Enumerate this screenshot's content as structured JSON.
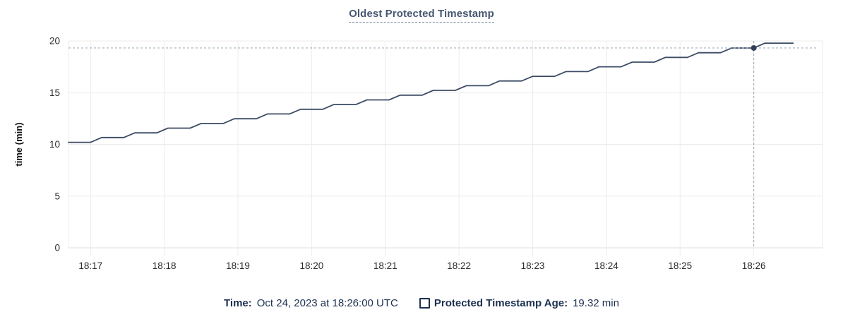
{
  "colors": {
    "line": "#3c4b66",
    "dot": "#30405a",
    "crosshair": "#a2b2c0",
    "grid": "#ececec",
    "axis_zero": "#dcdcdc",
    "title": "#475872",
    "tick_text": "#2b2b2b",
    "ylabel_text": "#111111",
    "legend_text": "#1c3150"
  },
  "footer": {
    "time_label": "Time:",
    "time_value": "Oct 24, 2023 at 18:26:00 UTC",
    "series_label": "Protected Timestamp Age:",
    "series_value": "19.32 min",
    "legend_marker": "checkbox-square-outline"
  },
  "chart_data": {
    "type": "line",
    "title": "Oldest Protected Timestamp",
    "xlabel": "",
    "ylabel": "time (min)",
    "ylim": [
      0,
      20
    ],
    "y_ticks": [
      0,
      5,
      10,
      15,
      20
    ],
    "x_ticks": [
      "18:17",
      "18:18",
      "18:19",
      "18:20",
      "18:21",
      "18:22",
      "18:23",
      "18:24",
      "18:25",
      "18:26"
    ],
    "x_domain": [
      "18:16:42",
      "18:26:56"
    ],
    "grid": true,
    "legend_position": "bottom-center",
    "series": [
      {
        "name": "Protected Timestamp Age",
        "unit": "min",
        "start_time": "18:16:42",
        "points": [
          [
            0,
            10.2
          ],
          [
            18,
            10.2
          ],
          [
            27,
            10.66
          ],
          [
            45,
            10.66
          ],
          [
            54,
            11.11
          ],
          [
            72,
            11.11
          ],
          [
            81,
            11.57
          ],
          [
            99,
            11.57
          ],
          [
            108,
            12.02
          ],
          [
            126,
            12.02
          ],
          [
            135,
            12.48
          ],
          [
            153,
            12.48
          ],
          [
            162,
            12.94
          ],
          [
            180,
            12.94
          ],
          [
            189,
            13.39
          ],
          [
            207,
            13.39
          ],
          [
            216,
            13.85
          ],
          [
            234,
            13.85
          ],
          [
            243,
            14.3
          ],
          [
            261,
            14.3
          ],
          [
            270,
            14.76
          ],
          [
            288,
            14.76
          ],
          [
            297,
            15.22
          ],
          [
            315,
            15.22
          ],
          [
            324,
            15.67
          ],
          [
            342,
            15.67
          ],
          [
            351,
            16.13
          ],
          [
            369,
            16.13
          ],
          [
            378,
            16.58
          ],
          [
            396,
            16.58
          ],
          [
            405,
            17.04
          ],
          [
            423,
            17.04
          ],
          [
            432,
            17.5
          ],
          [
            450,
            17.5
          ],
          [
            459,
            17.95
          ],
          [
            477,
            17.95
          ],
          [
            486,
            18.41
          ],
          [
            504,
            18.41
          ],
          [
            513,
            18.86
          ],
          [
            531,
            18.86
          ],
          [
            540,
            19.32
          ],
          [
            558,
            19.32
          ],
          [
            567,
            19.78
          ],
          [
            590,
            19.78
          ]
        ]
      }
    ],
    "hover": {
      "date": "Oct 24, 2023",
      "time": "18:26:00",
      "time_zone": "UTC",
      "value": 19.32,
      "value_label": "19.32 min"
    }
  }
}
